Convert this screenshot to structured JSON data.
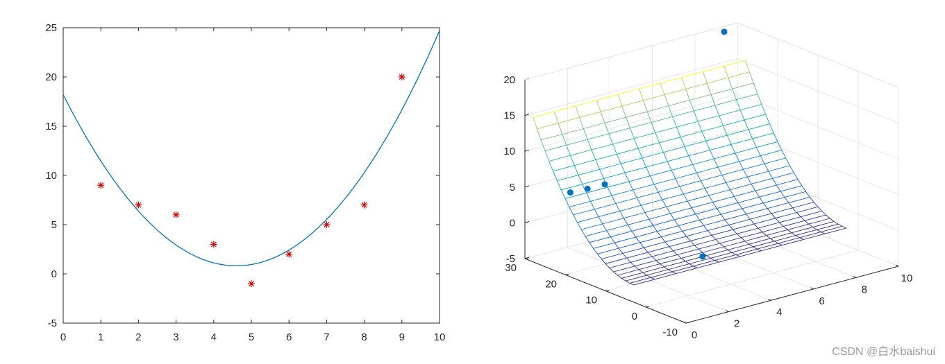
{
  "chart_data": [
    {
      "type": "scatter",
      "title": "",
      "xlabel": "",
      "ylabel": "",
      "xlim": [
        0,
        10
      ],
      "ylim": [
        -5,
        25
      ],
      "xticks": [
        "0",
        "1",
        "2",
        "3",
        "4",
        "5",
        "6",
        "7",
        "8",
        "9",
        "10"
      ],
      "yticks": [
        "-5",
        "0",
        "5",
        "10",
        "15",
        "20",
        "25"
      ],
      "grid": false,
      "series": [
        {
          "kind": "markers",
          "marker": "asterisk",
          "color": "#d40000",
          "x": [
            1,
            2,
            3,
            4,
            5,
            6,
            7,
            8,
            9
          ],
          "y": [
            9,
            7,
            6,
            3,
            -1,
            2,
            5,
            7,
            20
          ]
        },
        {
          "kind": "line",
          "color": "#0072bd",
          "curve": "quadratic fit",
          "coefficients": [
            0.82,
            -7.55,
            18.2
          ]
        }
      ]
    },
    {
      "type": "surface",
      "title": "",
      "xlabel": "",
      "ylabel": "",
      "zlabel": "",
      "xlim": [
        0,
        10
      ],
      "ylim": [
        -10,
        30
      ],
      "zlim": [
        -5,
        20
      ],
      "xticks": [
        "0",
        "2",
        "4",
        "6",
        "8",
        "10"
      ],
      "yticks": [
        "-10",
        "0",
        "10",
        "20",
        "30"
      ],
      "zticks": [
        "-5",
        "0",
        "5",
        "10",
        "15",
        "20"
      ],
      "grid": true,
      "colormap": "parula",
      "points": {
        "color": "#0072bd",
        "x": [
          1,
          2,
          3,
          4,
          9
        ],
        "y": [
          24,
          25,
          26,
          7,
          28
        ],
        "z": [
          4.8,
          4.3,
          3.9,
          -2.7,
          20
        ]
      }
    }
  ],
  "watermark": "CSDN @白水baishui"
}
